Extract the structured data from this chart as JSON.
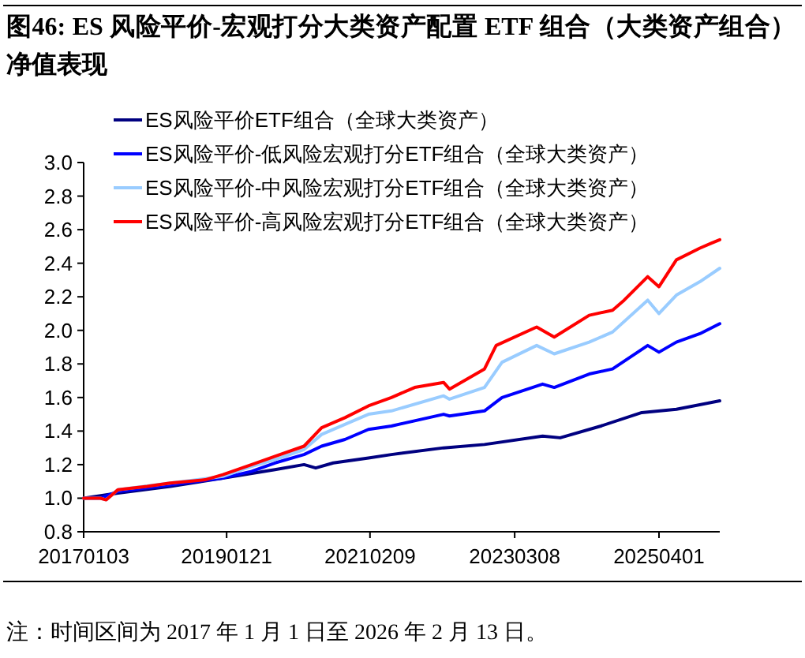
{
  "chart_data": {
    "type": "line",
    "title": "图46: ES 风险平价-宏观打分大类资产配置 ETF 组合（大类资产组合）净值表现",
    "annotations": [
      "注：时间区间为 2017 年 1 月 1 日至 2026 年 2 月 13 日。"
    ],
    "xlim": [
      "2017-01-03",
      "2026-02-13"
    ],
    "xticks": [
      {
        "value": "2017-01-03",
        "label": "20170103"
      },
      {
        "value": "2019-01-21",
        "label": "20190121"
      },
      {
        "value": "2021-02-09",
        "label": "20210209"
      },
      {
        "value": "2023-03-08",
        "label": "20230308"
      },
      {
        "value": "2025-04-01",
        "label": "20250401"
      }
    ],
    "ylim": [
      0.8,
      3.0
    ],
    "yticks": [
      {
        "value": 0.8,
        "label": "0.8"
      },
      {
        "value": 1.0,
        "label": "1.0"
      },
      {
        "value": 1.2,
        "label": "1.2"
      },
      {
        "value": 1.4,
        "label": "1.4"
      },
      {
        "value": 1.6,
        "label": "1.6"
      },
      {
        "value": 1.8,
        "label": "1.8"
      },
      {
        "value": 2.0,
        "label": "2.0"
      },
      {
        "value": 2.2,
        "label": "2.2"
      },
      {
        "value": 2.4,
        "label": "2.4"
      },
      {
        "value": 2.6,
        "label": "2.6"
      },
      {
        "value": 2.8,
        "label": "2.8"
      },
      {
        "value": 3.0,
        "label": "3.0"
      }
    ],
    "legend": "top left",
    "series": [
      {
        "name": "ES风险平价ETF组合（全球大类资产）",
        "color": "#000080",
        "x": [
          "2017-01-03",
          "2017-07",
          "2018-04",
          "2019-01",
          "2019-10",
          "2020-03",
          "2020-05",
          "2020-08",
          "2021-02",
          "2021-06",
          "2022-03",
          "2022-10",
          "2023-08",
          "2023-11",
          "2024-06",
          "2025-01",
          "2025-07",
          "2026-02-13"
        ],
        "values": [
          1.0,
          1.03,
          1.07,
          1.12,
          1.17,
          1.2,
          1.18,
          1.21,
          1.24,
          1.26,
          1.3,
          1.32,
          1.37,
          1.36,
          1.43,
          1.51,
          1.53,
          1.58
        ]
      },
      {
        "name": "ES风险平价-低风险宏观打分ETF组合（全球大类资产）",
        "color": "#0000ff",
        "x": [
          "2017-01-03",
          "2017-04",
          "2017-07",
          "2018-04",
          "2019-01",
          "2019-06",
          "2019-10",
          "2020-03",
          "2020-06",
          "2020-10",
          "2021-02",
          "2021-06",
          "2022-03",
          "2022-04",
          "2022-10",
          "2023-01",
          "2023-08",
          "2023-10",
          "2024-04",
          "2024-08",
          "2025-02",
          "2025-04",
          "2025-07",
          "2025-11",
          "2026-02-13"
        ],
        "values": [
          1.0,
          1.0,
          1.04,
          1.08,
          1.12,
          1.16,
          1.21,
          1.26,
          1.31,
          1.35,
          1.41,
          1.43,
          1.5,
          1.49,
          1.52,
          1.6,
          1.68,
          1.66,
          1.74,
          1.77,
          1.91,
          1.87,
          1.93,
          1.98,
          2.04
        ]
      },
      {
        "name": "ES风险平价-中风险宏观打分ETF组合（全球大类资产）",
        "color": "#99ccff",
        "x": [
          "2017-01-03",
          "2017-04",
          "2017-05",
          "2017-07",
          "2018-04",
          "2019-01",
          "2019-06",
          "2019-10",
          "2020-03",
          "2020-06",
          "2020-10",
          "2021-02",
          "2021-06",
          "2022-03",
          "2022-04",
          "2022-10",
          "2023-01",
          "2023-07",
          "2023-10",
          "2024-04",
          "2024-08",
          "2025-02",
          "2025-04",
          "2025-07",
          "2025-11",
          "2026-02-13"
        ],
        "values": [
          1.0,
          1.0,
          0.99,
          1.05,
          1.09,
          1.13,
          1.19,
          1.23,
          1.29,
          1.38,
          1.44,
          1.5,
          1.52,
          1.61,
          1.59,
          1.66,
          1.81,
          1.91,
          1.86,
          1.93,
          1.99,
          2.18,
          2.1,
          2.21,
          2.29,
          2.37
        ]
      },
      {
        "name": "ES风险平价-高风险宏观打分ETF组合（全球大类资产）",
        "color": "#ff0000",
        "x": [
          "2017-01-03",
          "2017-04",
          "2017-05",
          "2017-07",
          "2017-12",
          "2018-04",
          "2018-07",
          "2018-10",
          "2019-01",
          "2019-06",
          "2019-10",
          "2020-03",
          "2020-06",
          "2020-10",
          "2021-02",
          "2021-06",
          "2021-10",
          "2022-03",
          "2022-04",
          "2022-10",
          "2022-12",
          "2023-07",
          "2023-10",
          "2024-04",
          "2024-08",
          "2024-10",
          "2025-02",
          "2025-04",
          "2025-07",
          "2025-11",
          "2026-01",
          "2026-02-13"
        ],
        "values": [
          1.0,
          1.0,
          0.99,
          1.05,
          1.07,
          1.09,
          1.1,
          1.11,
          1.14,
          1.2,
          1.25,
          1.31,
          1.42,
          1.48,
          1.55,
          1.6,
          1.66,
          1.69,
          1.65,
          1.77,
          1.91,
          2.02,
          1.96,
          2.09,
          2.12,
          2.18,
          2.32,
          2.26,
          2.42,
          2.49,
          2.52,
          2.54
        ]
      }
    ]
  }
}
